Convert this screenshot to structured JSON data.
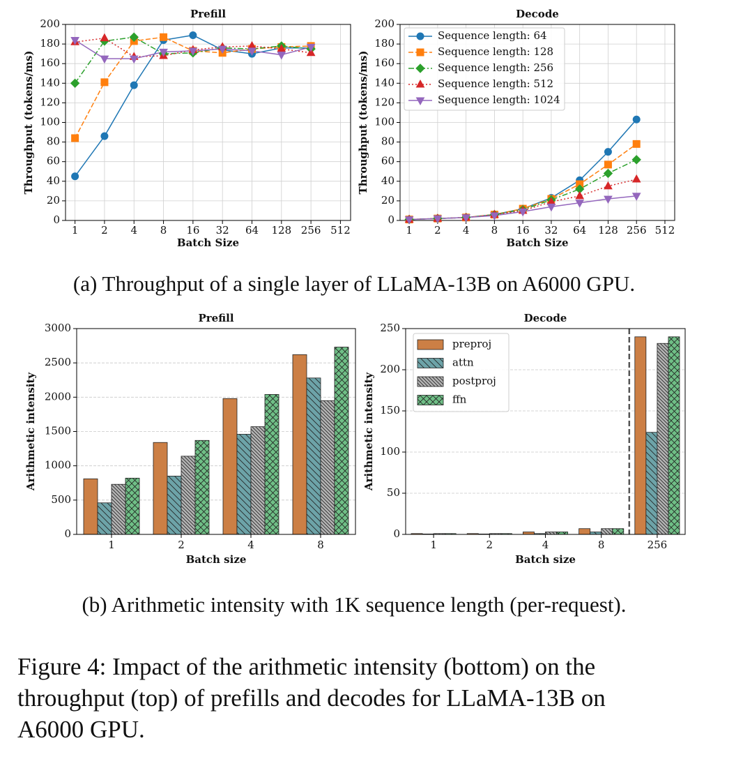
{
  "chart_data": [
    {
      "type": "line",
      "title": "Prefill",
      "xlabel": "Batch Size",
      "ylabel": "Throughput (tokens/ms)",
      "x": [
        1,
        2,
        4,
        8,
        16,
        32,
        64,
        128,
        256
      ],
      "xscale": "log",
      "xlim": [
        0.8,
        650
      ],
      "xticks": [
        1,
        2,
        4,
        8,
        16,
        32,
        64,
        128,
        256,
        512
      ],
      "ylim": [
        0,
        200
      ],
      "yticks": [
        0,
        20,
        40,
        60,
        80,
        100,
        120,
        140,
        160,
        180,
        200
      ],
      "grid": true,
      "series": [
        {
          "name": "Sequence length: 64",
          "color": "#1f77b4",
          "marker": "o",
          "linestyle": "-",
          "values": [
            45,
            86,
            138,
            184,
            189,
            174,
            170,
            176,
            176
          ]
        },
        {
          "name": "Sequence length: 128",
          "color": "#ff7f0e",
          "marker": "s",
          "linestyle": "--",
          "values": [
            84,
            141,
            183,
            187,
            173,
            171,
            175,
            177,
            178
          ]
        },
        {
          "name": "Sequence length: 256",
          "color": "#2ca02c",
          "marker": "D",
          "linestyle": "-.",
          "values": [
            140,
            183,
            187,
            170,
            171,
            176,
            175,
            178,
            175
          ]
        },
        {
          "name": "Sequence length: 512",
          "color": "#d62728",
          "marker": "^",
          "linestyle": ":",
          "values": [
            182,
            186,
            167,
            168,
            174,
            177,
            178,
            175,
            171
          ]
        },
        {
          "name": "Sequence length: 1024",
          "color": "#9467bd",
          "marker": "v",
          "linestyle": "-",
          "values": [
            184,
            165,
            165,
            172,
            173,
            175,
            173,
            169,
            177
          ]
        }
      ]
    },
    {
      "type": "line",
      "title": "Decode",
      "xlabel": "Batch Size",
      "ylabel": "Throughput (tokens/ms)",
      "x": [
        1,
        2,
        4,
        8,
        16,
        32,
        64,
        128,
        256
      ],
      "xscale": "log",
      "xlim": [
        0.8,
        650
      ],
      "xticks": [
        1,
        2,
        4,
        8,
        16,
        32,
        64,
        128,
        256,
        512
      ],
      "ylim": [
        0,
        200
      ],
      "yticks": [
        0,
        20,
        40,
        60,
        80,
        100,
        120,
        140,
        160,
        180,
        200
      ],
      "grid": true,
      "legend": "upper left",
      "series": [
        {
          "name": "Sequence length: 64",
          "color": "#1f77b4",
          "marker": "o",
          "linestyle": "-",
          "values": [
            1,
            2,
            3,
            6,
            12,
            23,
            41,
            70,
            103
          ]
        },
        {
          "name": "Sequence length: 128",
          "color": "#ff7f0e",
          "marker": "s",
          "linestyle": "--",
          "values": [
            1,
            2,
            3,
            6,
            12,
            22,
            37,
            57,
            78
          ]
        },
        {
          "name": "Sequence length: 256",
          "color": "#2ca02c",
          "marker": "D",
          "linestyle": "-.",
          "values": [
            1,
            2,
            3,
            6,
            11,
            21,
            32,
            48,
            62
          ]
        },
        {
          "name": "Sequence length: 512",
          "color": "#d62728",
          "marker": "^",
          "linestyle": ":",
          "values": [
            1,
            2,
            3,
            6,
            10,
            19,
            25,
            35,
            42
          ]
        },
        {
          "name": "Sequence length: 1024",
          "color": "#9467bd",
          "marker": "v",
          "linestyle": "-",
          "values": [
            1,
            2,
            3,
            5,
            9,
            14,
            18,
            22,
            25
          ]
        }
      ]
    },
    {
      "type": "bar",
      "title": "Prefill",
      "xlabel": "Batch size",
      "ylabel": "Arithmetic intensity",
      "categories": [
        "1",
        "2",
        "4",
        "8"
      ],
      "ylim": [
        0,
        3000
      ],
      "yticks": [
        0,
        500,
        1000,
        1500,
        2000,
        2500,
        3000
      ],
      "grid": true,
      "series": [
        {
          "name": "preproj",
          "color": "#cc7f45",
          "hatch": "",
          "values": [
            810,
            1340,
            1980,
            2620
          ]
        },
        {
          "name": "attn",
          "color": "#6da3a8",
          "hatch": "\\",
          "values": [
            460,
            850,
            1460,
            2280
          ]
        },
        {
          "name": "postproj",
          "color": "#b3b3b3",
          "hatch": "\\\\",
          "values": [
            730,
            1140,
            1570,
            1950
          ]
        },
        {
          "name": "ffn",
          "color": "#6fbf86",
          "hatch": "x",
          "values": [
            820,
            1370,
            2040,
            2730
          ]
        }
      ]
    },
    {
      "type": "bar",
      "title": "Decode",
      "xlabel": "Batch size",
      "ylabel": "Arithmetic intensity",
      "categories": [
        "1",
        "2",
        "4",
        "8",
        "256"
      ],
      "ylim": [
        0,
        250
      ],
      "yticks": [
        0,
        50,
        100,
        150,
        200,
        250
      ],
      "grid": true,
      "legend": "upper left",
      "series": [
        {
          "name": "preproj",
          "color": "#cc7f45",
          "hatch": "",
          "values": [
            1,
            1,
            3,
            7,
            240
          ]
        },
        {
          "name": "attn",
          "color": "#6da3a8",
          "hatch": "\\",
          "values": [
            0.5,
            0.5,
            1,
            3,
            124
          ]
        },
        {
          "name": "postproj",
          "color": "#b3b3b3",
          "hatch": "\\\\",
          "values": [
            1,
            1,
            3,
            7,
            232
          ]
        },
        {
          "name": "ffn",
          "color": "#6fbf86",
          "hatch": "x",
          "values": [
            1,
            1,
            3,
            7,
            240
          ]
        }
      ]
    }
  ],
  "captions": [
    "(a) Throughput of a single layer of LLaMA-13B on A6000 GPU.",
    "(b) Arithmetic intensity with 1K sequence length (per-request)."
  ],
  "figure_caption": [
    "Figure 4: Impact of the arithmetic intensity (bottom) on the",
    "throughput (top) of prefills and decodes for LLaMA-13B on",
    "A6000 GPU."
  ]
}
